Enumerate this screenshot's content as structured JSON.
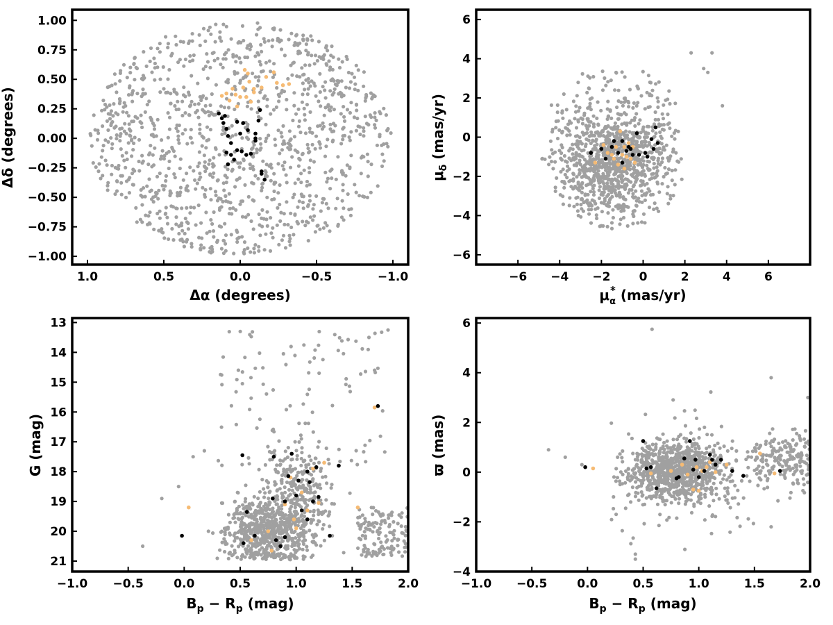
{
  "colors": {
    "field": "#a0a0a0",
    "black_members": "#000000",
    "orange_members": "#f6bb74"
  },
  "chart_data": [
    {
      "type": "scatter",
      "xlabel": "Δα (degrees)",
      "ylabel": "Δδ (degrees)",
      "xlim": [
        1.1,
        -1.1
      ],
      "ylim": [
        -1.07,
        1.09
      ],
      "xticks": [
        1.0,
        0.5,
        0.0,
        -0.5,
        -1.0
      ],
      "xtick_labels": [
        "1.0",
        "0.5",
        "0.0",
        "−0.5",
        "−1.0"
      ],
      "yticks": [
        1.0,
        0.75,
        0.5,
        0.25,
        0.0,
        -0.25,
        -0.5,
        -0.75,
        -1.0
      ],
      "ytick_labels": [
        "1.00",
        "0.75",
        "0.50",
        "0.25",
        "0.00",
        "−0.25",
        "−0.50",
        "−0.75",
        "−1.00"
      ],
      "field_stars": {
        "description_count": 1200,
        "distribution": "uniform disk of radius ~1.0 deg"
      },
      "series": [
        {
          "color": "black",
          "points": [
            [
              0.14,
              0.21
            ],
            [
              0.12,
              0.17
            ],
            [
              0.1,
              0.19
            ],
            [
              0.11,
              0.13
            ],
            [
              0.09,
              0.08
            ],
            [
              0.08,
              0.02
            ],
            [
              0.06,
              -0.04
            ],
            [
              0.09,
              -0.12
            ],
            [
              0.06,
              -0.14
            ],
            [
              0.08,
              -0.22
            ],
            [
              0.04,
              -0.18
            ],
            [
              0.02,
              -0.1
            ],
            [
              0.0,
              0.04
            ],
            [
              -0.02,
              0.13
            ],
            [
              0.02,
              0.14
            ],
            [
              -0.05,
              0.07
            ],
            [
              -0.07,
              -0.13
            ],
            [
              -0.1,
              0.0
            ],
            [
              -0.1,
              -0.02
            ],
            [
              -0.12,
              0.15
            ],
            [
              -0.1,
              0.04
            ],
            [
              -0.13,
              0.24
            ],
            [
              -0.14,
              -0.28
            ],
            [
              -0.16,
              -0.35
            ],
            [
              -0.14,
              -0.3
            ],
            [
              -0.01,
              -0.11
            ],
            [
              -0.04,
              -0.14
            ]
          ]
        },
        {
          "color": "orange",
          "points": [
            [
              0.09,
              0.38
            ],
            [
              0.07,
              0.32
            ],
            [
              0.05,
              0.42
            ],
            [
              0.02,
              0.27
            ],
            [
              0.0,
              0.35
            ],
            [
              -0.02,
              0.43
            ],
            [
              -0.03,
              0.58
            ],
            [
              -0.05,
              0.55
            ],
            [
              -0.06,
              0.48
            ],
            [
              -0.09,
              0.42
            ],
            [
              -0.09,
              0.39
            ],
            [
              -0.14,
              0.43
            ],
            [
              -0.17,
              0.52
            ],
            [
              -0.22,
              0.56
            ],
            [
              -0.24,
              0.47
            ],
            [
              -0.28,
              0.45
            ],
            [
              -0.32,
              0.46
            ],
            [
              0.12,
              0.36
            ],
            [
              0.03,
              0.37
            ],
            [
              -0.07,
              0.31
            ],
            [
              -0.04,
              0.35
            ]
          ]
        }
      ]
    },
    {
      "type": "scatter",
      "xlabel": "μα* (mas/yr)",
      "ylabel": "μδ (mas/yr)",
      "xlim": [
        -8,
        8
      ],
      "ylim": [
        -6.5,
        6.5
      ],
      "xticks": [
        -6,
        -4,
        -2,
        0,
        2,
        4,
        6
      ],
      "xtick_labels": [
        "−6",
        "−4",
        "−2",
        "0",
        "2",
        "4",
        "6"
      ],
      "yticks": [
        6,
        4,
        2,
        0,
        -2,
        -4,
        -6
      ],
      "ytick_labels": [
        "6",
        "4",
        "2",
        "0",
        "−2",
        "−4",
        "−6"
      ],
      "field_stars": {
        "description_count": 1100,
        "distribution": "clump centred near (-1.5, -1.5), extent ±3.5 mas/yr"
      },
      "series": [
        {
          "color": "black",
          "points": [
            [
              -2.5,
              -0.8
            ],
            [
              -2.0,
              -0.6
            ],
            [
              -1.8,
              -1.1
            ],
            [
              -1.5,
              -0.5
            ],
            [
              -1.4,
              -0.2
            ],
            [
              -1.2,
              -0.8
            ],
            [
              -1.0,
              -0.2
            ],
            [
              -0.8,
              -0.7
            ],
            [
              -0.7,
              -0.5
            ],
            [
              -0.5,
              -0.9
            ],
            [
              -0.3,
              0.2
            ],
            [
              -0.2,
              -0.9
            ],
            [
              0.1,
              -0.8
            ],
            [
              0.2,
              -1.0
            ],
            [
              0.4,
              -0.1
            ],
            [
              0.5,
              -0.6
            ],
            [
              0.6,
              0.5
            ],
            [
              0.7,
              -0.3
            ],
            [
              -1.0,
              -1.3
            ],
            [
              -0.6,
              -0.6
            ]
          ]
        },
        {
          "color": "orange",
          "points": [
            [
              -2.3,
              -1.3
            ],
            [
              -1.9,
              -0.4
            ],
            [
              -1.7,
              -0.8
            ],
            [
              -1.5,
              -0.9
            ],
            [
              -1.3,
              -0.5
            ],
            [
              -1.2,
              -1.4
            ],
            [
              -1.1,
              0.3
            ],
            [
              -1.0,
              -0.9
            ],
            [
              -0.9,
              -1.6
            ],
            [
              -0.8,
              -1.0
            ],
            [
              -0.7,
              -0.3
            ],
            [
              -0.6,
              -1.1
            ],
            [
              -0.5,
              -0.5
            ],
            [
              -0.4,
              -1.3
            ],
            [
              -1.4,
              -1.1
            ],
            [
              -0.9,
              -0.5
            ]
          ]
        }
      ]
    },
    {
      "type": "scatter",
      "xlabel": "Bp − Rp (mag)",
      "ylabel": "G (mag)",
      "xlim": [
        -1.0,
        2.0
      ],
      "ylim": [
        21.35,
        12.85
      ],
      "xticks": [
        -1.0,
        -0.5,
        0.0,
        0.5,
        1.0,
        1.5,
        2.0
      ],
      "xtick_labels": [
        "−1.0",
        "−0.5",
        "0.0",
        "0.5",
        "1.0",
        "1.5",
        "2.0"
      ],
      "yticks": [
        21,
        20,
        19,
        18,
        17,
        16,
        15,
        14,
        13
      ],
      "ytick_labels": [
        "21",
        "20",
        "19",
        "18",
        "17",
        "16",
        "15",
        "14",
        "13"
      ],
      "field_stars": {
        "description_count": 1150,
        "distribution": "dense sequence G 18–21 at colour 0.5–1.2, tail to bright red stars"
      },
      "series": [
        {
          "color": "black",
          "points": [
            [
              -0.02,
              20.15
            ],
            [
              0.53,
              20.4
            ],
            [
              0.56,
              19.35
            ],
            [
              0.63,
              20.15
            ],
            [
              0.79,
              18.9
            ],
            [
              0.8,
              17.5
            ],
            [
              0.82,
              20.3
            ],
            [
              0.86,
              20.5
            ],
            [
              0.9,
              19.0
            ],
            [
              0.9,
              20.2
            ],
            [
              0.93,
              18.15
            ],
            [
              0.96,
              17.4
            ],
            [
              1.0,
              18.8
            ],
            [
              1.02,
              18.3
            ],
            [
              1.05,
              19.3
            ],
            [
              1.1,
              18.0
            ],
            [
              1.1,
              19.6
            ],
            [
              1.12,
              18.35
            ],
            [
              1.15,
              19.0
            ],
            [
              1.18,
              17.85
            ],
            [
              1.2,
              18.85
            ],
            [
              1.3,
              20.15
            ],
            [
              1.38,
              17.8
            ],
            [
              1.73,
              15.8
            ],
            [
              0.52,
              17.45
            ]
          ]
        },
        {
          "color": "orange",
          "points": [
            [
              0.04,
              19.2
            ],
            [
              0.6,
              20.3
            ],
            [
              0.75,
              20.0
            ],
            [
              0.9,
              19.1
            ],
            [
              0.95,
              18.2
            ],
            [
              0.98,
              19.6
            ],
            [
              1.0,
              19.9
            ],
            [
              1.05,
              18.7
            ],
            [
              1.1,
              19.3
            ],
            [
              1.15,
              17.9
            ],
            [
              1.2,
              19.05
            ],
            [
              1.25,
              17.7
            ],
            [
              1.55,
              19.2
            ],
            [
              1.7,
              15.85
            ],
            [
              0.78,
              20.65
            ]
          ]
        }
      ]
    },
    {
      "type": "scatter",
      "xlabel": "Bp − Rp (mag)",
      "ylabel": "ϖ (mas)",
      "xlim": [
        -1.0,
        2.0
      ],
      "ylim": [
        -4.0,
        6.2
      ],
      "xticks": [
        -1.0,
        -0.5,
        0.0,
        0.5,
        1.0,
        1.5,
        2.0
      ],
      "xtick_labels": [
        "−1.0",
        "−0.5",
        "0.0",
        "0.5",
        "1.0",
        "1.5",
        "2.0"
      ],
      "yticks": [
        6,
        4,
        2,
        0,
        -2,
        -4
      ],
      "ytick_labels": [
        "6",
        "4",
        "2",
        "0",
        "−2",
        "−4"
      ],
      "field_stars": {
        "description_count": 1150,
        "distribution": "band centred on ϖ≈0, colour 0.3–2.0"
      },
      "series": [
        {
          "color": "black",
          "points": [
            [
              -0.02,
              0.2
            ],
            [
              0.5,
              1.25
            ],
            [
              0.53,
              0.15
            ],
            [
              0.57,
              0.2
            ],
            [
              0.62,
              -0.65
            ],
            [
              0.8,
              -0.25
            ],
            [
              0.82,
              -0.2
            ],
            [
              0.87,
              0.55
            ],
            [
              0.92,
              1.25
            ],
            [
              0.95,
              0.1
            ],
            [
              0.97,
              0.5
            ],
            [
              1.0,
              -0.2
            ],
            [
              1.05,
              0.05
            ],
            [
              1.1,
              0.7
            ],
            [
              1.12,
              0.5
            ],
            [
              1.15,
              0.3
            ],
            [
              1.2,
              0.5
            ],
            [
              1.3,
              0.05
            ],
            [
              1.4,
              -0.15
            ],
            [
              1.73,
              0.05
            ]
          ]
        },
        {
          "color": "orange",
          "points": [
            [
              0.05,
              0.15
            ],
            [
              0.57,
              -0.05
            ],
            [
              0.75,
              0.05
            ],
            [
              0.85,
              0.3
            ],
            [
              0.9,
              -0.1
            ],
            [
              0.95,
              -0.7
            ],
            [
              0.98,
              0.2
            ],
            [
              1.0,
              -0.75
            ],
            [
              1.03,
              0.05
            ],
            [
              1.07,
              0.2
            ],
            [
              1.1,
              0.4
            ],
            [
              1.15,
              0.0
            ],
            [
              1.25,
              0.3
            ],
            [
              1.55,
              0.75
            ],
            [
              1.68,
              -0.05
            ]
          ]
        }
      ]
    }
  ]
}
